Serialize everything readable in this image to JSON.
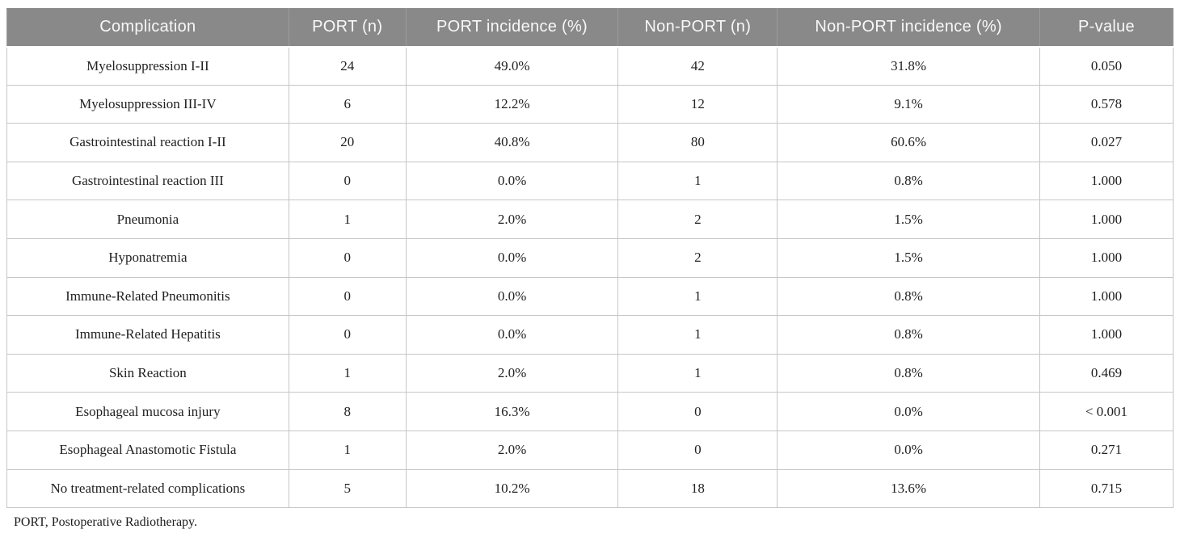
{
  "table": {
    "columns": [
      {
        "label": "Complication"
      },
      {
        "label": "PORT (n)"
      },
      {
        "label": "PORT incidence (%)"
      },
      {
        "label": "Non-PORT (n)"
      },
      {
        "label": "Non-PORT incidence (%)"
      },
      {
        "label": "P-value"
      }
    ],
    "rows": [
      [
        "Myelosuppression I-II",
        "24",
        "49.0%",
        "42",
        "31.8%",
        "0.050"
      ],
      [
        "Myelosuppression III-IV",
        "6",
        "12.2%",
        "12",
        "9.1%",
        "0.578"
      ],
      [
        "Gastrointestinal reaction I-II",
        "20",
        "40.8%",
        "80",
        "60.6%",
        "0.027"
      ],
      [
        "Gastrointestinal reaction III",
        "0",
        "0.0%",
        "1",
        "0.8%",
        "1.000"
      ],
      [
        "Pneumonia",
        "1",
        "2.0%",
        "2",
        "1.5%",
        "1.000"
      ],
      [
        "Hyponatremia",
        "0",
        "0.0%",
        "2",
        "1.5%",
        "1.000"
      ],
      [
        "Immune-Related Pneumonitis",
        "0",
        "0.0%",
        "1",
        "0.8%",
        "1.000"
      ],
      [
        "Immune-Related Hepatitis",
        "0",
        "0.0%",
        "1",
        "0.8%",
        "1.000"
      ],
      [
        "Skin Reaction",
        "1",
        "2.0%",
        "1",
        "0.8%",
        "0.469"
      ],
      [
        "Esophageal mucosa injury",
        "8",
        "16.3%",
        "0",
        "0.0%",
        "< 0.001"
      ],
      [
        "Esophageal Anastomotic Fistula",
        "1",
        "2.0%",
        "0",
        "0.0%",
        "0.271"
      ],
      [
        "No treatment-related complications",
        "5",
        "10.2%",
        "18",
        "13.6%",
        "0.715"
      ]
    ]
  },
  "footnote": "PORT, Postoperative Radiotherapy.",
  "colors": {
    "header_bg": "#898989",
    "header_text": "#f8f8f8",
    "body_border": "#c6c6c6",
    "body_text": "#212121"
  }
}
